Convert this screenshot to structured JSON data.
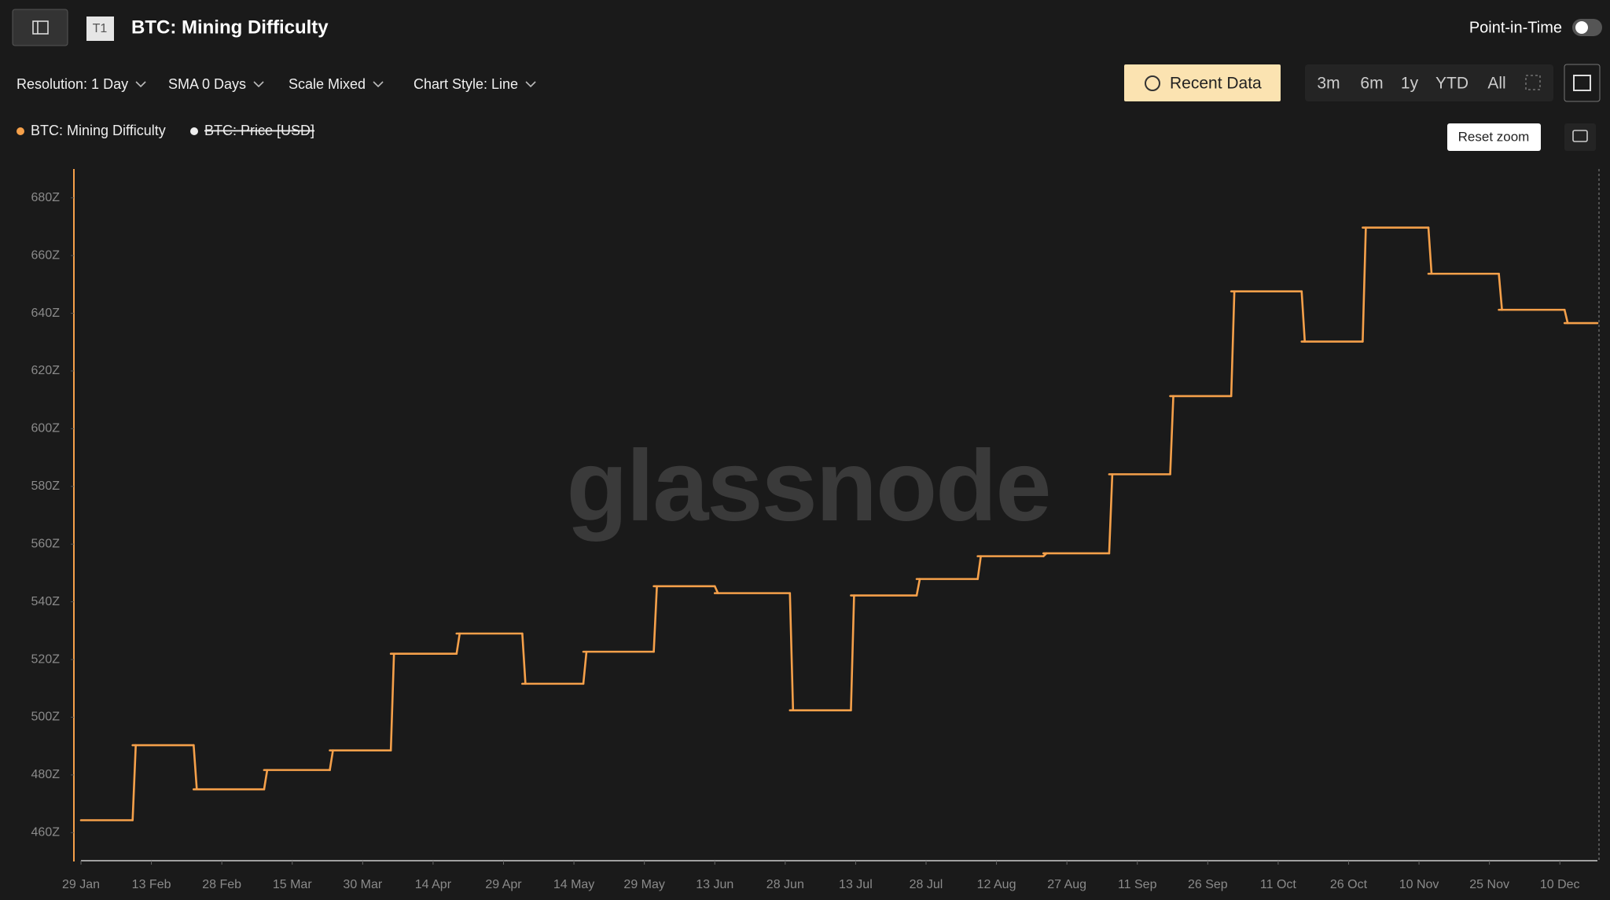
{
  "header": {
    "tab": "T1",
    "title": "BTC: Mining Difficulty",
    "point_in_time": "Point-in-Time"
  },
  "toolbar": {
    "controls": [
      "Resolution: 1 Day",
      "SMA 0 Days",
      "Scale Mixed",
      "Chart Style: Line"
    ],
    "recent": "Recent Data",
    "ranges": [
      "3m",
      "6m",
      "1y",
      "YTD",
      "All"
    ],
    "reset_zoom": "Reset zoom"
  },
  "watermark": "glassnode",
  "hidden_legend": "BTC: Price [USD]",
  "chart_data": {
    "type": "step",
    "x": [
      "29 Jan",
      "9 Feb",
      "22 Feb",
      "9 Mar",
      "23 Mar",
      "5 Apr",
      "19 Apr",
      "3 May",
      "16 May",
      "31 May",
      "13 Jun",
      "29 Jun",
      "12 Jul",
      "26 Jul",
      "8 Aug",
      "22 Aug",
      "5 Sep",
      "18 Sep",
      "1 Oct",
      "16 Oct",
      "29 Oct",
      "12 Nov",
      "27 Nov",
      "11 Dec"
    ],
    "series": [
      {
        "name": "BTC: Mining Difficulty",
        "color": "#f5a04a",
        "values": [
          464.3,
          490.3,
          475,
          481.7,
          488.5,
          522,
          529,
          511.6,
          522.7,
          545.4,
          543,
          502.4,
          542.2,
          547.9,
          555.8,
          556.8,
          584.2,
          611.3,
          647.6,
          630.2,
          669.7,
          653.7,
          641.2,
          636.6
        ]
      }
    ],
    "xlim": [
      "29 Jan",
      "18 Dec"
    ],
    "xticks": [
      "29 Jan",
      "13 Feb",
      "28 Feb",
      "15 Mar",
      "30 Mar",
      "14 Apr",
      "29 Apr",
      "14 May",
      "29 May",
      "13 Jun",
      "28 Jun",
      "13 Jul",
      "28 Jul",
      "12 Aug",
      "27 Aug",
      "11 Sep",
      "26 Sep",
      "11 Oct",
      "26 Oct",
      "10 Nov",
      "25 Nov",
      "10 Dec"
    ],
    "ylim": [
      450,
      690
    ],
    "yticks": [
      {
        "value": 460,
        "label": "460Z"
      },
      {
        "value": 480,
        "label": "480Z"
      },
      {
        "value": 500,
        "label": "500Z"
      },
      {
        "value": 520,
        "label": "520Z"
      },
      {
        "value": 540,
        "label": "540Z"
      },
      {
        "value": 560,
        "label": "560Z"
      },
      {
        "value": 580,
        "label": "580Z"
      },
      {
        "value": 600,
        "label": "600Z"
      },
      {
        "value": 620,
        "label": "620Z"
      },
      {
        "value": 640,
        "label": "640Z"
      },
      {
        "value": 660,
        "label": "660Z"
      },
      {
        "value": 680,
        "label": "680Z"
      }
    ]
  }
}
